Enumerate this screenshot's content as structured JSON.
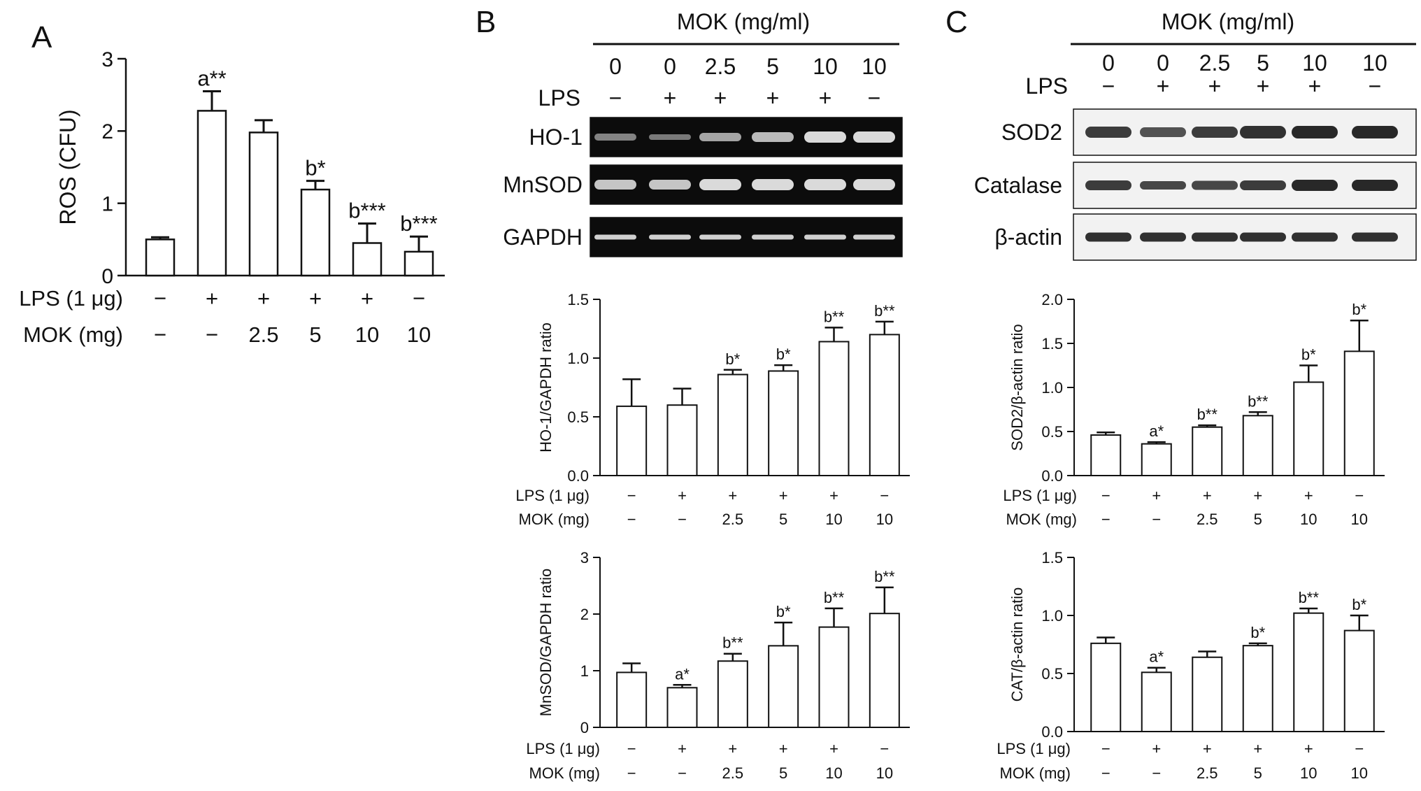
{
  "panels": {
    "A": {
      "letter": "A",
      "chart_data": {
        "type": "bar",
        "ylabel": "ROS (CFU)",
        "ylim": [
          0,
          3
        ],
        "yticks": [
          "0",
          "1",
          "2",
          "3"
        ],
        "values": [
          0.5,
          2.28,
          1.98,
          1.19,
          0.45,
          0.33
        ],
        "errors": [
          0.03,
          0.27,
          0.17,
          0.12,
          0.27,
          0.21
        ],
        "annotations": [
          "",
          "a**",
          "",
          "b*",
          "b***",
          "b***"
        ],
        "conditions": [
          {
            "label": "LPS (1 μg)",
            "values": [
              "−",
              "+",
              "+",
              "+",
              "+",
              "−"
            ]
          },
          {
            "label": "MOK (mg)",
            "values": [
              "−",
              "−",
              "2.5",
              "5",
              "10",
              "10"
            ]
          }
        ]
      }
    },
    "B": {
      "letter": "B",
      "blot": {
        "header": "MOK (mg/ml)",
        "doses": [
          "0",
          "0",
          "2.5",
          "5",
          "10",
          "10"
        ],
        "lps_label": "LPS",
        "lps": [
          "−",
          "+",
          "+",
          "+",
          "+",
          "−"
        ],
        "rows": [
          "HO-1",
          "MnSOD",
          "GAPDH"
        ]
      },
      "charts": [
        {
          "type": "bar",
          "ylabel": "HO-1/GAPDH ratio",
          "ylim": [
            0,
            1.5
          ],
          "yticks": [
            "0.0",
            "0.5",
            "1.0",
            "1.5"
          ],
          "values": [
            0.59,
            0.6,
            0.86,
            0.89,
            1.14,
            1.2
          ],
          "errors": [
            0.23,
            0.14,
            0.04,
            0.05,
            0.12,
            0.11
          ],
          "annotations": [
            "",
            "",
            "b*",
            "b*",
            "b**",
            "b**"
          ],
          "conditions": [
            {
              "label": "LPS (1 μg)",
              "values": [
                "−",
                "+",
                "+",
                "+",
                "+",
                "−"
              ]
            },
            {
              "label": "MOK (mg)",
              "values": [
                "−",
                "−",
                "2.5",
                "5",
                "10",
                "10"
              ]
            }
          ]
        },
        {
          "type": "bar",
          "ylabel": "MnSOD/GAPDH ratio",
          "ylim": [
            0,
            3
          ],
          "yticks": [
            "0",
            "1",
            "2",
            "3"
          ],
          "values": [
            0.97,
            0.7,
            1.17,
            1.44,
            1.77,
            2.01
          ],
          "errors": [
            0.16,
            0.05,
            0.13,
            0.41,
            0.33,
            0.46
          ],
          "annotations": [
            "",
            "a*",
            "b**",
            "b*",
            "b**",
            "b**"
          ],
          "conditions": [
            {
              "label": "LPS (1 μg)",
              "values": [
                "−",
                "+",
                "+",
                "+",
                "+",
                "−"
              ]
            },
            {
              "label": "MOK (mg)",
              "values": [
                "−",
                "−",
                "2.5",
                "5",
                "10",
                "10"
              ]
            }
          ]
        }
      ]
    },
    "C": {
      "letter": "C",
      "blot": {
        "header": "MOK (mg/ml)",
        "doses": [
          "0",
          "0",
          "2.5",
          "5",
          "10",
          "10"
        ],
        "lps_label": "LPS",
        "lps": [
          "−",
          "+",
          "+",
          "+",
          "+",
          "−"
        ],
        "rows": [
          "SOD2",
          "Catalase",
          "β-actin"
        ]
      },
      "charts": [
        {
          "type": "bar",
          "ylabel": "SOD2/β-actin ratio",
          "ylim": [
            0,
            2
          ],
          "yticks": [
            "0.0",
            "0.5",
            "1.0",
            "1.5",
            "2.0"
          ],
          "values": [
            0.46,
            0.36,
            0.55,
            0.68,
            1.06,
            1.41
          ],
          "errors": [
            0.03,
            0.02,
            0.02,
            0.04,
            0.19,
            0.35
          ],
          "annotations": [
            "",
            "a*",
            "b**",
            "b**",
            "b*",
            "b*"
          ],
          "conditions": [
            {
              "label": "LPS (1 μg)",
              "values": [
                "−",
                "+",
                "+",
                "+",
                "+",
                "−"
              ]
            },
            {
              "label": "MOK (mg)",
              "values": [
                "−",
                "−",
                "2.5",
                "5",
                "10",
                "10"
              ]
            }
          ]
        },
        {
          "type": "bar",
          "ylabel": "CAT/β-actin ratio",
          "ylim": [
            0,
            1.5
          ],
          "yticks": [
            "0.0",
            "0.5",
            "1.0",
            "1.5"
          ],
          "values": [
            0.76,
            0.51,
            0.64,
            0.74,
            1.02,
            0.87
          ],
          "errors": [
            0.05,
            0.04,
            0.05,
            0.02,
            0.04,
            0.13
          ],
          "annotations": [
            "",
            "a*",
            "",
            "b*",
            "b**",
            "b*"
          ],
          "conditions": [
            {
              "label": "LPS (1 μg)",
              "values": [
                "−",
                "+",
                "+",
                "+",
                "+",
                "−"
              ]
            },
            {
              "label": "MOK (mg)",
              "values": [
                "−",
                "−",
                "2.5",
                "5",
                "10",
                "10"
              ]
            }
          ]
        }
      ]
    }
  },
  "colors": {
    "bar_fill": "#ffffff",
    "stroke": "#111111",
    "gel_background": "#0c0c0c",
    "gel_band": "#e6e6e6",
    "blot_background": "#f2f2f2",
    "blot_band": "#1c1c1c"
  }
}
